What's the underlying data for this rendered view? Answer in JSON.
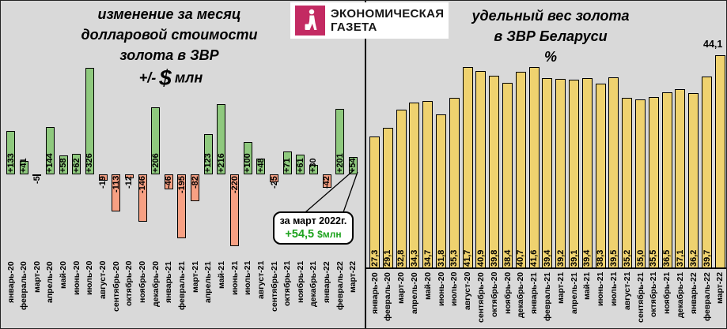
{
  "background_color": "#d9d9d9",
  "logo": {
    "line1": "ЭКОНОМИЧЕСКАЯ",
    "line2": "ГАЗЕТА",
    "brand_color": "#c32a62",
    "icon": "walking-woman-silhouette"
  },
  "left_chart": {
    "title_line1": "изменение за месяц",
    "title_line2": "долларовой стоимости",
    "title_line3": "золота в ЗВР",
    "unit_prefix": "+/-",
    "unit_currency": "$",
    "unit_suffix": "млн",
    "positive_color": "#8fc97e",
    "negative_color": "#f7a083",
    "annotation": {
      "line1": "за март 2022г.",
      "value": "+54,5",
      "unit": "$млн",
      "value_color": "#1ea31e"
    }
  },
  "right_chart": {
    "title_line1": "удельный вес золота",
    "title_line2": "в ЗВР Беларуси",
    "title_line3": "%",
    "bar_color": "#efd26f",
    "top_label": "44,1"
  },
  "chart_data": [
    {
      "type": "bar",
      "title": "изменение за месяц долларовой стоимости золота в ЗВР, +/- $ млн",
      "categories": [
        "январь-20",
        "февраль-20",
        "март-20",
        "апрель-20",
        "май-20",
        "июнь-20",
        "июль-20",
        "август-20",
        "сентябрь-20",
        "октябрь-20",
        "ноябрь-20",
        "декабрь-20",
        "январь-21",
        "февраль-21",
        "март-21",
        "апрель-21",
        "май-21",
        "июнь-21",
        "июль-21",
        "август-21",
        "сентябрь-21",
        "октябрь-21",
        "ноябрь-21",
        "декабрь-21",
        "январь-22",
        "февраль-22",
        "март-22"
      ],
      "values": [
        133,
        41,
        -5,
        144,
        58,
        62,
        326,
        -19,
        -113,
        -12,
        -146,
        206,
        -46,
        -195,
        -82,
        123,
        216,
        -220,
        100,
        48,
        -25,
        71,
        61,
        30,
        -42,
        201,
        54
      ],
      "labels": [
        "+133",
        "+41",
        "-5",
        "+144",
        "+58",
        "+62",
        "+326",
        "-19",
        "-113",
        "-12",
        "-146",
        "+206",
        "-46",
        "-195",
        "-82",
        "+123",
        "+216",
        "-220",
        "+100",
        "+48",
        "-25",
        "+71",
        "+61",
        "+30",
        "-42",
        "+201",
        "+54"
      ],
      "ylim": [
        -250,
        350
      ],
      "grid": false,
      "axes_visible": false,
      "positive_color": "#8fc97e",
      "negative_color": "#f7a083"
    },
    {
      "type": "bar",
      "title": "удельный вес золота в ЗВР Беларуси, %",
      "categories": [
        "январь-20",
        "февраль-20",
        "март-20",
        "апрель-20",
        "май-20",
        "июнь-20",
        "июль-20",
        "август-20",
        "сентябрь-20",
        "октябрь-20",
        "ноябрь-20",
        "декабрь-20",
        "январь-21",
        "февраль-21",
        "март-21",
        "апрель-21",
        "май-21",
        "июнь-21",
        "июль-21",
        "август-21",
        "сентябрь-21",
        "октябрь-21",
        "ноябрь-21",
        "декабрь-21",
        "январь-22",
        "февраль-22",
        "март-22"
      ],
      "values": [
        27.3,
        29.1,
        32.8,
        34.3,
        34.7,
        31.8,
        35.3,
        41.7,
        40.9,
        39.8,
        38.4,
        40.7,
        41.6,
        39.4,
        39.2,
        39.1,
        39.4,
        38.3,
        39.5,
        35.2,
        35.0,
        35.5,
        36.5,
        37.1,
        36.2,
        39.7,
        44.1
      ],
      "labels": [
        "27,3",
        "29,1",
        "32,8",
        "34,3",
        "34,7",
        "31,8",
        "35,3",
        "41,7",
        "40,9",
        "39,8",
        "38,4",
        "40,7",
        "41,6",
        "39,4",
        "39,2",
        "39,1",
        "39,4",
        "38,3",
        "39,5",
        "35,2",
        "35,0",
        "35,5",
        "36,5",
        "37,1",
        "36,2",
        "39,7",
        ""
      ],
      "ylim": [
        0,
        45
      ],
      "grid": false,
      "axes_visible": true,
      "bar_color": "#efd26f"
    }
  ]
}
